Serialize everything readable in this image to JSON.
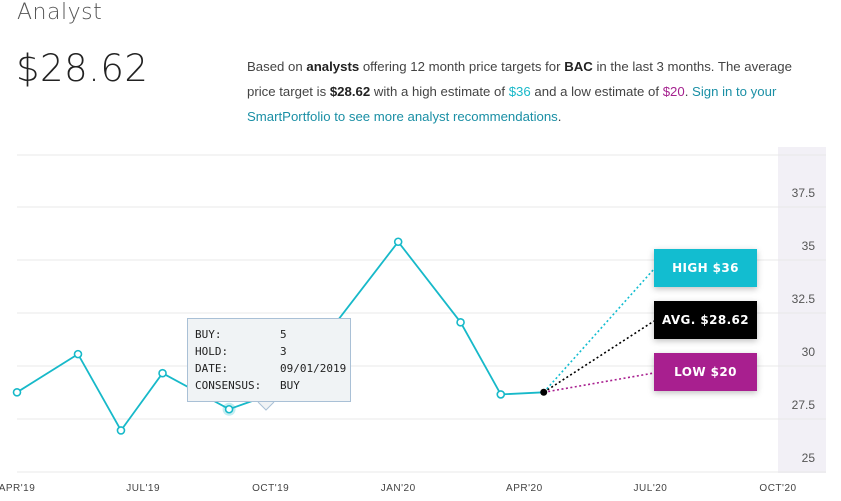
{
  "header": {
    "title": "Analyst",
    "price": "$28.62",
    "summary": {
      "p1": "Based on ",
      "b1": "analysts",
      "p2": " offering 12 month price targets for ",
      "b2": "BAC",
      "p3": " in the last 3 months. The average price target is ",
      "b3": "$28.62",
      "p4": " with a high estimate of ",
      "high": "$36",
      "p5": " and a low estimate of ",
      "low": "$20",
      "p6": ". ",
      "link": "Sign in to your SmartPortfolio to see more analyst recommendations",
      "p7": "."
    }
  },
  "colors": {
    "line": "#17b9c9",
    "high": "#12bdd0",
    "avg": "#000000",
    "low": "#a81f8f",
    "forecast_band": "#f2f0f6",
    "grid": "#e8e8e8"
  },
  "chart_data": {
    "type": "line",
    "x_tick_labels": [
      "APR'19",
      "JUL'19",
      "OCT'19",
      "JAN'20",
      "APR'20",
      "JUL'20",
      "OCT'20"
    ],
    "y_ticks": [
      "25",
      "27.5",
      "30",
      "32.5",
      "35",
      "37.5"
    ],
    "ylim": [
      24.5,
      38.5
    ],
    "series": [
      {
        "values": [
          {
            "x": "2019-04-01",
            "y": 28.1
          },
          {
            "x": "2019-05-15",
            "y": 29.9
          },
          {
            "x": "2019-06-15",
            "y": 26.3
          },
          {
            "x": "2019-07-15",
            "y": 29.0
          },
          {
            "x": "2019-09-01",
            "y": 27.3
          },
          {
            "x": "2019-10-01",
            "y": 28.0
          },
          {
            "x": "2019-11-15",
            "y": 31.2
          },
          {
            "x": "2020-01-01",
            "y": 35.2
          },
          {
            "x": "2020-02-15",
            "y": 31.4
          },
          {
            "x": "2020-03-15",
            "y": 28.0
          },
          {
            "x": "2020-04-15",
            "y": 28.1
          }
        ]
      }
    ],
    "forecast": {
      "origin": {
        "x": "2020-04-15",
        "y": 28.1
      },
      "high": {
        "label": "HIGH $36",
        "value": 36
      },
      "average": {
        "label": "AVG. $28.62",
        "value": 28.62
      },
      "low": {
        "label": "LOW $20",
        "value": 20
      }
    },
    "tooltip": {
      "rows": [
        {
          "key": "BUY:",
          "value": "5"
        },
        {
          "key": "HOLD:",
          "value": "3"
        },
        {
          "key": "DATE:",
          "value": "09/01/2019"
        },
        {
          "key": "CONSENSUS:",
          "value": "BUY"
        }
      ]
    }
  }
}
